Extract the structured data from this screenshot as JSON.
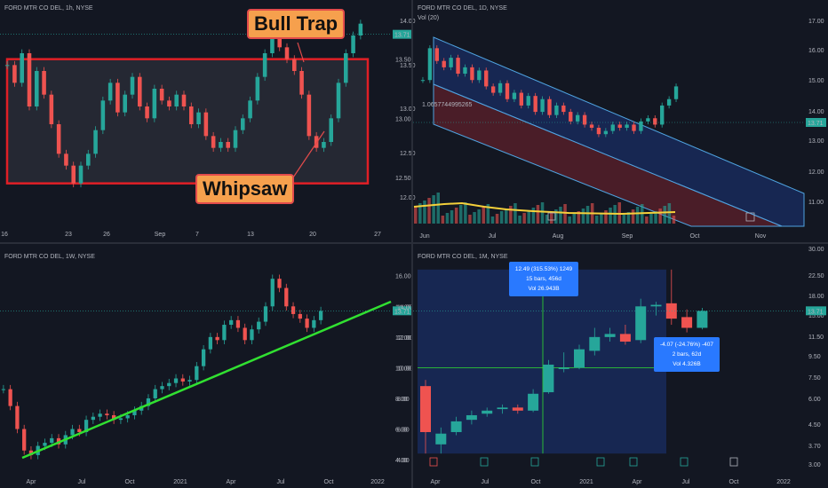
{
  "chart_data": [
    {
      "type": "candlestick",
      "title": "FORD MTR CO DEL, 1h, NYSE",
      "x_ticks": [
        "16",
        "23",
        "26",
        "Sep",
        "7",
        "13",
        "20",
        "27"
      ],
      "y_ticks": [
        "13.50",
        "13.00",
        "12.50"
      ],
      "last_price": "13.71",
      "annotations": [
        "Bull Trap",
        "Whipsaw"
      ],
      "range_box": {
        "low": 12.45,
        "high": 13.5
      },
      "ylim": [
        12.2,
        13.85
      ],
      "close_path": [
        13.45,
        13.3,
        13.55,
        13.1,
        13.4,
        13.2,
        12.95,
        12.7,
        12.6,
        12.45,
        12.6,
        12.7,
        12.9,
        13.15,
        13.3,
        13.05,
        13.2,
        13.35,
        13.1,
        13.0,
        13.25,
        13.15,
        13.1,
        13.2,
        13.1,
        12.95,
        13.05,
        12.85,
        12.75,
        12.8,
        12.75,
        12.9,
        13.0,
        13.15,
        13.35,
        13.55,
        13.7,
        13.6,
        13.5,
        13.4,
        13.2,
        12.85,
        12.75,
        12.8,
        13.0,
        13.3,
        13.55,
        13.7,
        13.8
      ]
    },
    {
      "type": "candlestick",
      "title": "FORD MTR CO DEL, 1D, NYSE",
      "subtitle": "Vol (20)",
      "x_ticks": [
        "Jun",
        "Jul",
        "Aug",
        "Sep",
        "Oct",
        "Nov"
      ],
      "y_ticks": [
        "14.00",
        "13.50",
        "13.00",
        "12.50",
        "12.00"
      ],
      "y_ticks_right": [
        "17.00",
        "16.00",
        "15.00",
        "14.00",
        "13.00",
        "12.00",
        "11.00"
      ],
      "last_price": "13.71",
      "channel_label": "1.0657744995265",
      "ylim": [
        11.8,
        14.1
      ],
      "close_path": [
        13.4,
        13.9,
        13.7,
        13.6,
        13.75,
        13.5,
        13.6,
        13.4,
        13.55,
        13.3,
        13.2,
        13.35,
        13.1,
        13.2,
        13.0,
        13.15,
        12.9,
        13.1,
        12.85,
        13.0,
        12.9,
        12.75,
        12.85,
        12.7,
        12.65,
        12.55,
        12.6,
        12.7,
        12.65,
        12.7,
        12.6,
        12.75,
        12.8,
        12.7,
        13.0,
        13.1,
        13.3
      ]
    },
    {
      "type": "candlestick",
      "title": "FORD MTR CO DEL, 1W, NYSE",
      "x_ticks": [
        "Apr",
        "Jul",
        "Oct",
        "2021",
        "Apr",
        "Jul",
        "Oct",
        "2022"
      ],
      "y_ticks": [
        "16.00",
        "14.00",
        "12.00",
        "10.00",
        "8.00",
        "6.00",
        "4.00"
      ],
      "last_price": "13.71",
      "ylim": [
        3.6,
        17.2
      ],
      "close_path": [
        8.6,
        7.5,
        6.0,
        4.6,
        4.3,
        4.9,
        5.1,
        5.4,
        5.0,
        5.6,
        6.0,
        5.8,
        6.6,
        6.8,
        7.0,
        6.9,
        6.6,
        6.7,
        6.9,
        7.2,
        7.5,
        8.0,
        8.6,
        8.8,
        9.0,
        9.3,
        9.1,
        9.2,
        10.1,
        11.2,
        12.0,
        11.8,
        12.8,
        13.1,
        12.6,
        11.8,
        12.5,
        13.0,
        14.0,
        15.8,
        15.2,
        14.0,
        13.5,
        13.2,
        12.6,
        13.1,
        13.7
      ]
    },
    {
      "type": "candlestick",
      "title": "FORD MTR CO DEL, 1M, NYSE",
      "x_ticks": [
        "Apr",
        "Jul",
        "Oct",
        "2021",
        "Apr",
        "Jul",
        "Oct",
        "2022"
      ],
      "y_ticks": [
        "14.00",
        "12.00",
        "10.00",
        "8.00",
        "6.00",
        "4.00"
      ],
      "y_ticks_right": [
        "30.00",
        "22.50",
        "18.00",
        "15.00",
        "11.50",
        "9.50",
        "7.50",
        "6.00",
        "4.50",
        "3.70",
        "3.00"
      ],
      "last_price": "13.71",
      "measure_up": [
        "12.49 (315.53%) 1249",
        "15 bars, 456d",
        "Vol 26.943B"
      ],
      "measure_down": [
        "-4.07 (-24.76%) -407",
        "2 bars, 62d",
        "Vol 4.326B"
      ],
      "ylim": [
        3.6,
        17.2
      ],
      "candles": [
        [
          8.8,
          5.8,
          9.2,
          4.4
        ],
        [
          5.0,
          5.7,
          6.1,
          4.4
        ],
        [
          5.8,
          6.5,
          6.8,
          5.6
        ],
        [
          6.6,
          6.9,
          7.2,
          6.3
        ],
        [
          7.0,
          7.2,
          7.4,
          6.8
        ],
        [
          7.3,
          7.4,
          7.6,
          7.0
        ],
        [
          7.4,
          7.2,
          7.6,
          7.0
        ],
        [
          7.2,
          8.3,
          8.6,
          7.1
        ],
        [
          8.4,
          10.2,
          10.5,
          8.3
        ],
        [
          10.0,
          10.0,
          11.0,
          9.7
        ],
        [
          10.0,
          11.2,
          11.5,
          9.9
        ],
        [
          11.1,
          12.0,
          12.6,
          10.8
        ],
        [
          12.0,
          12.2,
          12.6,
          11.7
        ],
        [
          12.2,
          11.7,
          12.8,
          11.5
        ],
        [
          11.8,
          14.0,
          14.5,
          11.6
        ],
        [
          14.0,
          14.1,
          14.3,
          13.4
        ],
        [
          14.2,
          13.2,
          16.4,
          12.8
        ],
        [
          13.3,
          12.6,
          13.8,
          12.3
        ],
        [
          12.6,
          13.7,
          13.9,
          12.5
        ]
      ]
    }
  ]
}
